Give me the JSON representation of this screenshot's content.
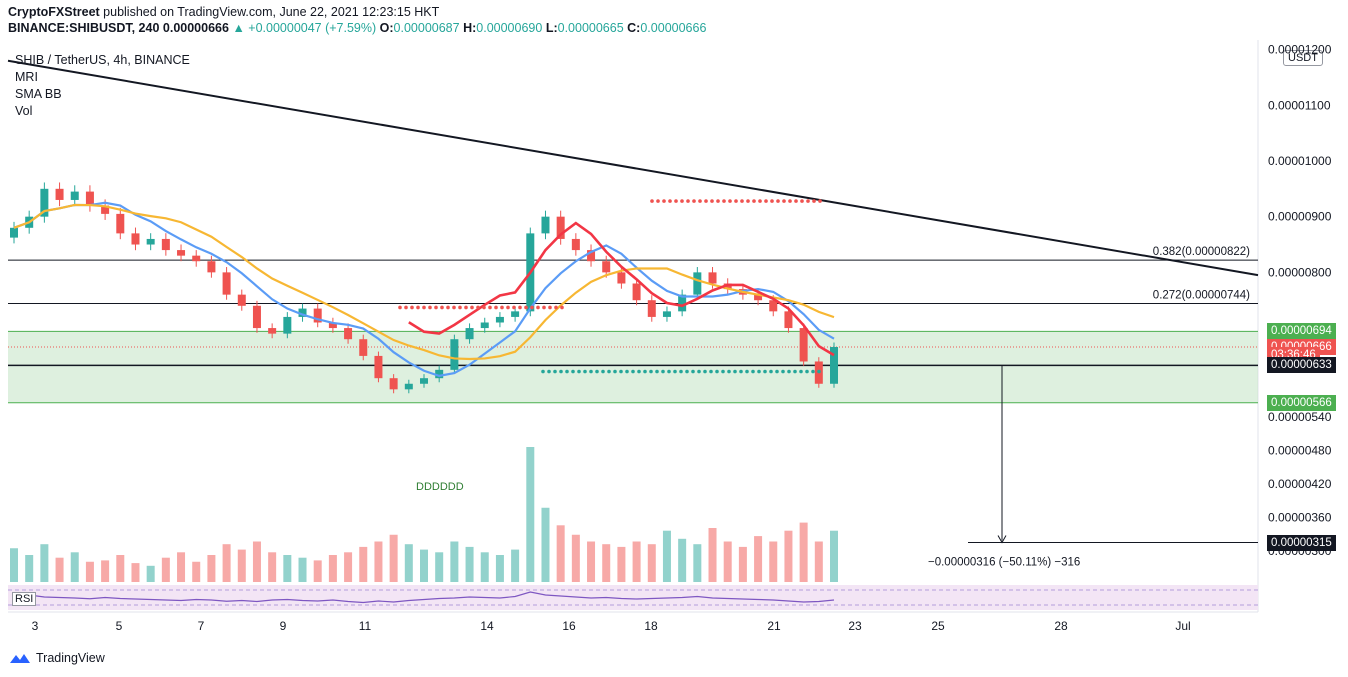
{
  "header": {
    "publisher": "CryptoFXStreet",
    "published_text": "published on TradingView.com, June 22, 2021 12:23:15 HKT",
    "symbol_line": "BINANCE:SHIBUSDT, 240",
    "last": "0.00000666",
    "change": "▲ +0.00000047 (+7.59%)",
    "open_label": "O:",
    "open": "0.00000687",
    "high_label": "H:",
    "high": "0.00000690",
    "low_label": "L:",
    "low": "0.00000665",
    "close_label": "C:",
    "close": "0.00000666"
  },
  "legend": {
    "title": "SHIB / TetherUS, 4h, BINANCE",
    "indicators": [
      "MRI",
      "SMA BB",
      "Vol"
    ]
  },
  "currency_button": "USDT",
  "rsi_label": "RSI",
  "footer": {
    "brand": "TradingView"
  },
  "price_tags": [
    {
      "label": "0.00000694",
      "value": 6.94e-06,
      "color": "#4caf50"
    },
    {
      "label": "0.00000666",
      "value": 6.66e-06,
      "color": "#ef5350"
    },
    {
      "label": "03:36:46",
      "value": 6.52e-06,
      "color": "#ef5350"
    },
    {
      "label": "0.00000633",
      "value": 6.33e-06,
      "color": "#131722"
    },
    {
      "label": "0.00000566",
      "value": 5.66e-06,
      "color": "#4caf50"
    },
    {
      "label": "0.00000315",
      "value": 3.15e-06,
      "color": "#131722"
    }
  ],
  "annotations": {
    "fib_382": "0.382(0.00000822)",
    "fib_272": "0.272(0.00000744)",
    "measure": "−0.00000316 (−50.11%) −316",
    "td_label": "DDDDDD"
  },
  "colors": {
    "up": "#26a69a",
    "down": "#ef5350",
    "sma_red": "#f23645",
    "sma_blue": "#5b9cf6",
    "sma_orange": "#f7b733",
    "zone": "#c8e6c9",
    "rsi_bg": "#f3e5f5",
    "rsi_line": "#7e57c2"
  },
  "chart_data": {
    "type": "candlestick",
    "x_ticks": [
      "3",
      "5",
      "7",
      "9",
      "11",
      "14",
      "16",
      "18",
      "21",
      "23",
      "25",
      "28",
      "Jul"
    ],
    "y_ticks": [
      "0.00001200",
      "0.00001100",
      "0.00001000",
      "0.00000900",
      "0.00000800",
      "0.00000540",
      "0.00000480",
      "0.00000420",
      "0.00000360",
      "0.00000300"
    ],
    "ylim": [
      2.8e-06,
      1.21e-05
    ],
    "closes": [
      8.8e-06,
      9e-06,
      9.5e-06,
      9.3e-06,
      9.45e-06,
      9.2e-06,
      9.05e-06,
      8.7e-06,
      8.5e-06,
      8.6e-06,
      8.4e-06,
      8.3e-06,
      8.2e-06,
      8e-06,
      7.6e-06,
      7.4e-06,
      7e-06,
      6.9e-06,
      7.2e-06,
      7.35e-06,
      7.1e-06,
      7e-06,
      6.8e-06,
      6.5e-06,
      6.1e-06,
      5.9e-06,
      6e-06,
      6.1e-06,
      6.25e-06,
      6.8e-06,
      7e-06,
      7.1e-06,
      7.2e-06,
      7.3e-06,
      8.7e-06,
      9e-06,
      8.6e-06,
      8.4e-06,
      8.2e-06,
      8e-06,
      7.8e-06,
      7.5e-06,
      7.2e-06,
      7.3e-06,
      7.6e-06,
      8e-06,
      7.8e-06,
      7.7e-06,
      7.6e-06,
      7.5e-06,
      7.3e-06,
      7e-06,
      6.4e-06,
      6e-06,
      6.66e-06
    ],
    "volume_range": [
      0,
      1
    ],
    "volumes": [
      0.25,
      0.2,
      0.28,
      0.18,
      0.22,
      0.15,
      0.16,
      0.2,
      0.14,
      0.12,
      0.18,
      0.22,
      0.15,
      0.2,
      0.28,
      0.24,
      0.3,
      0.22,
      0.2,
      0.18,
      0.16,
      0.2,
      0.22,
      0.26,
      0.3,
      0.35,
      0.28,
      0.24,
      0.22,
      0.3,
      0.26,
      0.22,
      0.2,
      0.24,
      1.0,
      0.55,
      0.42,
      0.35,
      0.3,
      0.28,
      0.26,
      0.3,
      0.28,
      0.38,
      0.32,
      0.28,
      0.4,
      0.3,
      0.26,
      0.34,
      0.3,
      0.38,
      0.44,
      0.3,
      0.38
    ],
    "rsi": [
      55,
      60,
      52,
      50,
      48,
      45,
      50,
      46,
      44,
      42,
      40,
      38,
      42,
      40,
      35,
      38,
      34,
      40,
      42,
      38,
      36,
      40,
      34,
      30,
      36,
      32,
      38,
      42,
      46,
      48,
      52,
      50,
      48,
      54,
      72,
      60,
      56,
      52,
      48,
      50,
      46,
      44,
      46,
      48,
      50,
      54,
      48,
      46,
      44,
      42,
      40,
      36,
      32,
      34,
      40
    ],
    "levels": {
      "fib_382": 8.22e-06,
      "fib_272": 7.44e-06,
      "support": 6.33e-06,
      "zone_top": 6.94e-06,
      "zone_bottom": 5.66e-06,
      "target": 3.15e-06
    }
  }
}
